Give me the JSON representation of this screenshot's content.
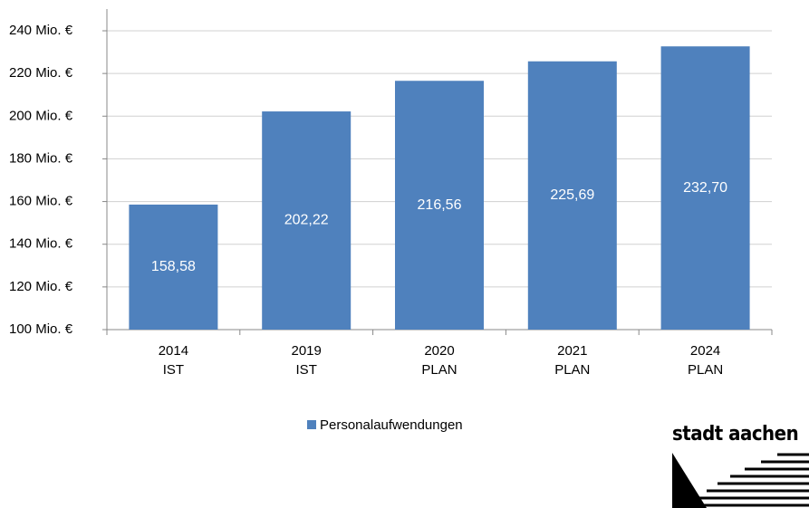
{
  "chart_data": {
    "type": "bar",
    "categories": [
      [
        "2014",
        "IST"
      ],
      [
        "2019",
        "IST"
      ],
      [
        "2020",
        "PLAN"
      ],
      [
        "2021",
        "PLAN"
      ],
      [
        "2024",
        "PLAN"
      ]
    ],
    "series": [
      {
        "name": "Personalaufwendungen",
        "color": "#4f81bd",
        "values": [
          158.58,
          202.22,
          216.56,
          225.69,
          232.7
        ],
        "value_labels": [
          "158,58",
          "202,22",
          "216,56",
          "225,69",
          "232,70"
        ]
      }
    ],
    "ylim": [
      100,
      240
    ],
    "yticks": [
      {
        "value": 100,
        "label": "100  Mio. €"
      },
      {
        "value": 120,
        "label": "120  Mio. €"
      },
      {
        "value": 140,
        "label": "140  Mio. €"
      },
      {
        "value": 160,
        "label": "160  Mio. €"
      },
      {
        "value": 180,
        "label": "180  Mio. €"
      },
      {
        "value": 200,
        "label": "200  Mio. €"
      },
      {
        "value": 220,
        "label": "220  Mio. €"
      },
      {
        "value": 240,
        "label": "240  Mio. €"
      }
    ],
    "grid": true,
    "legend": "bottom"
  },
  "logo": "stadt aachen"
}
